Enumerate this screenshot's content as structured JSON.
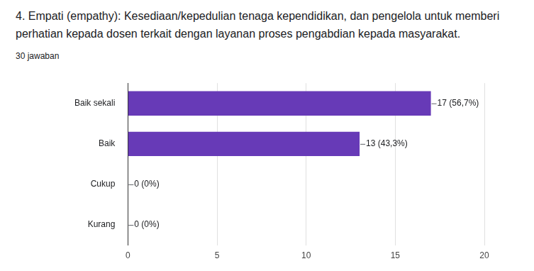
{
  "chart_data": {
    "type": "bar",
    "title": "4. Empati (empathy):  Kesediaan/kepedulian tenaga kependidikan, dan pengelola untuk memberi perhatian kepada dosen terkait dengan layanan proses pengabdian kepada masyarakat.",
    "subtitle": "30 jawaban",
    "categories": [
      "Baik sekali",
      "Baik",
      "Cukup",
      "Kurang"
    ],
    "values": [
      17,
      13,
      0,
      0
    ],
    "value_labels": [
      "17 (56,7%)",
      "13 (43,3%)",
      "0 (0%)",
      "0 (0%)"
    ],
    "color": "#673ab7",
    "orientation": "horizontal",
    "xlim": [
      0,
      20
    ],
    "xticks": [
      0,
      5,
      10,
      15,
      20
    ],
    "grid": true,
    "data_labels": true
  }
}
